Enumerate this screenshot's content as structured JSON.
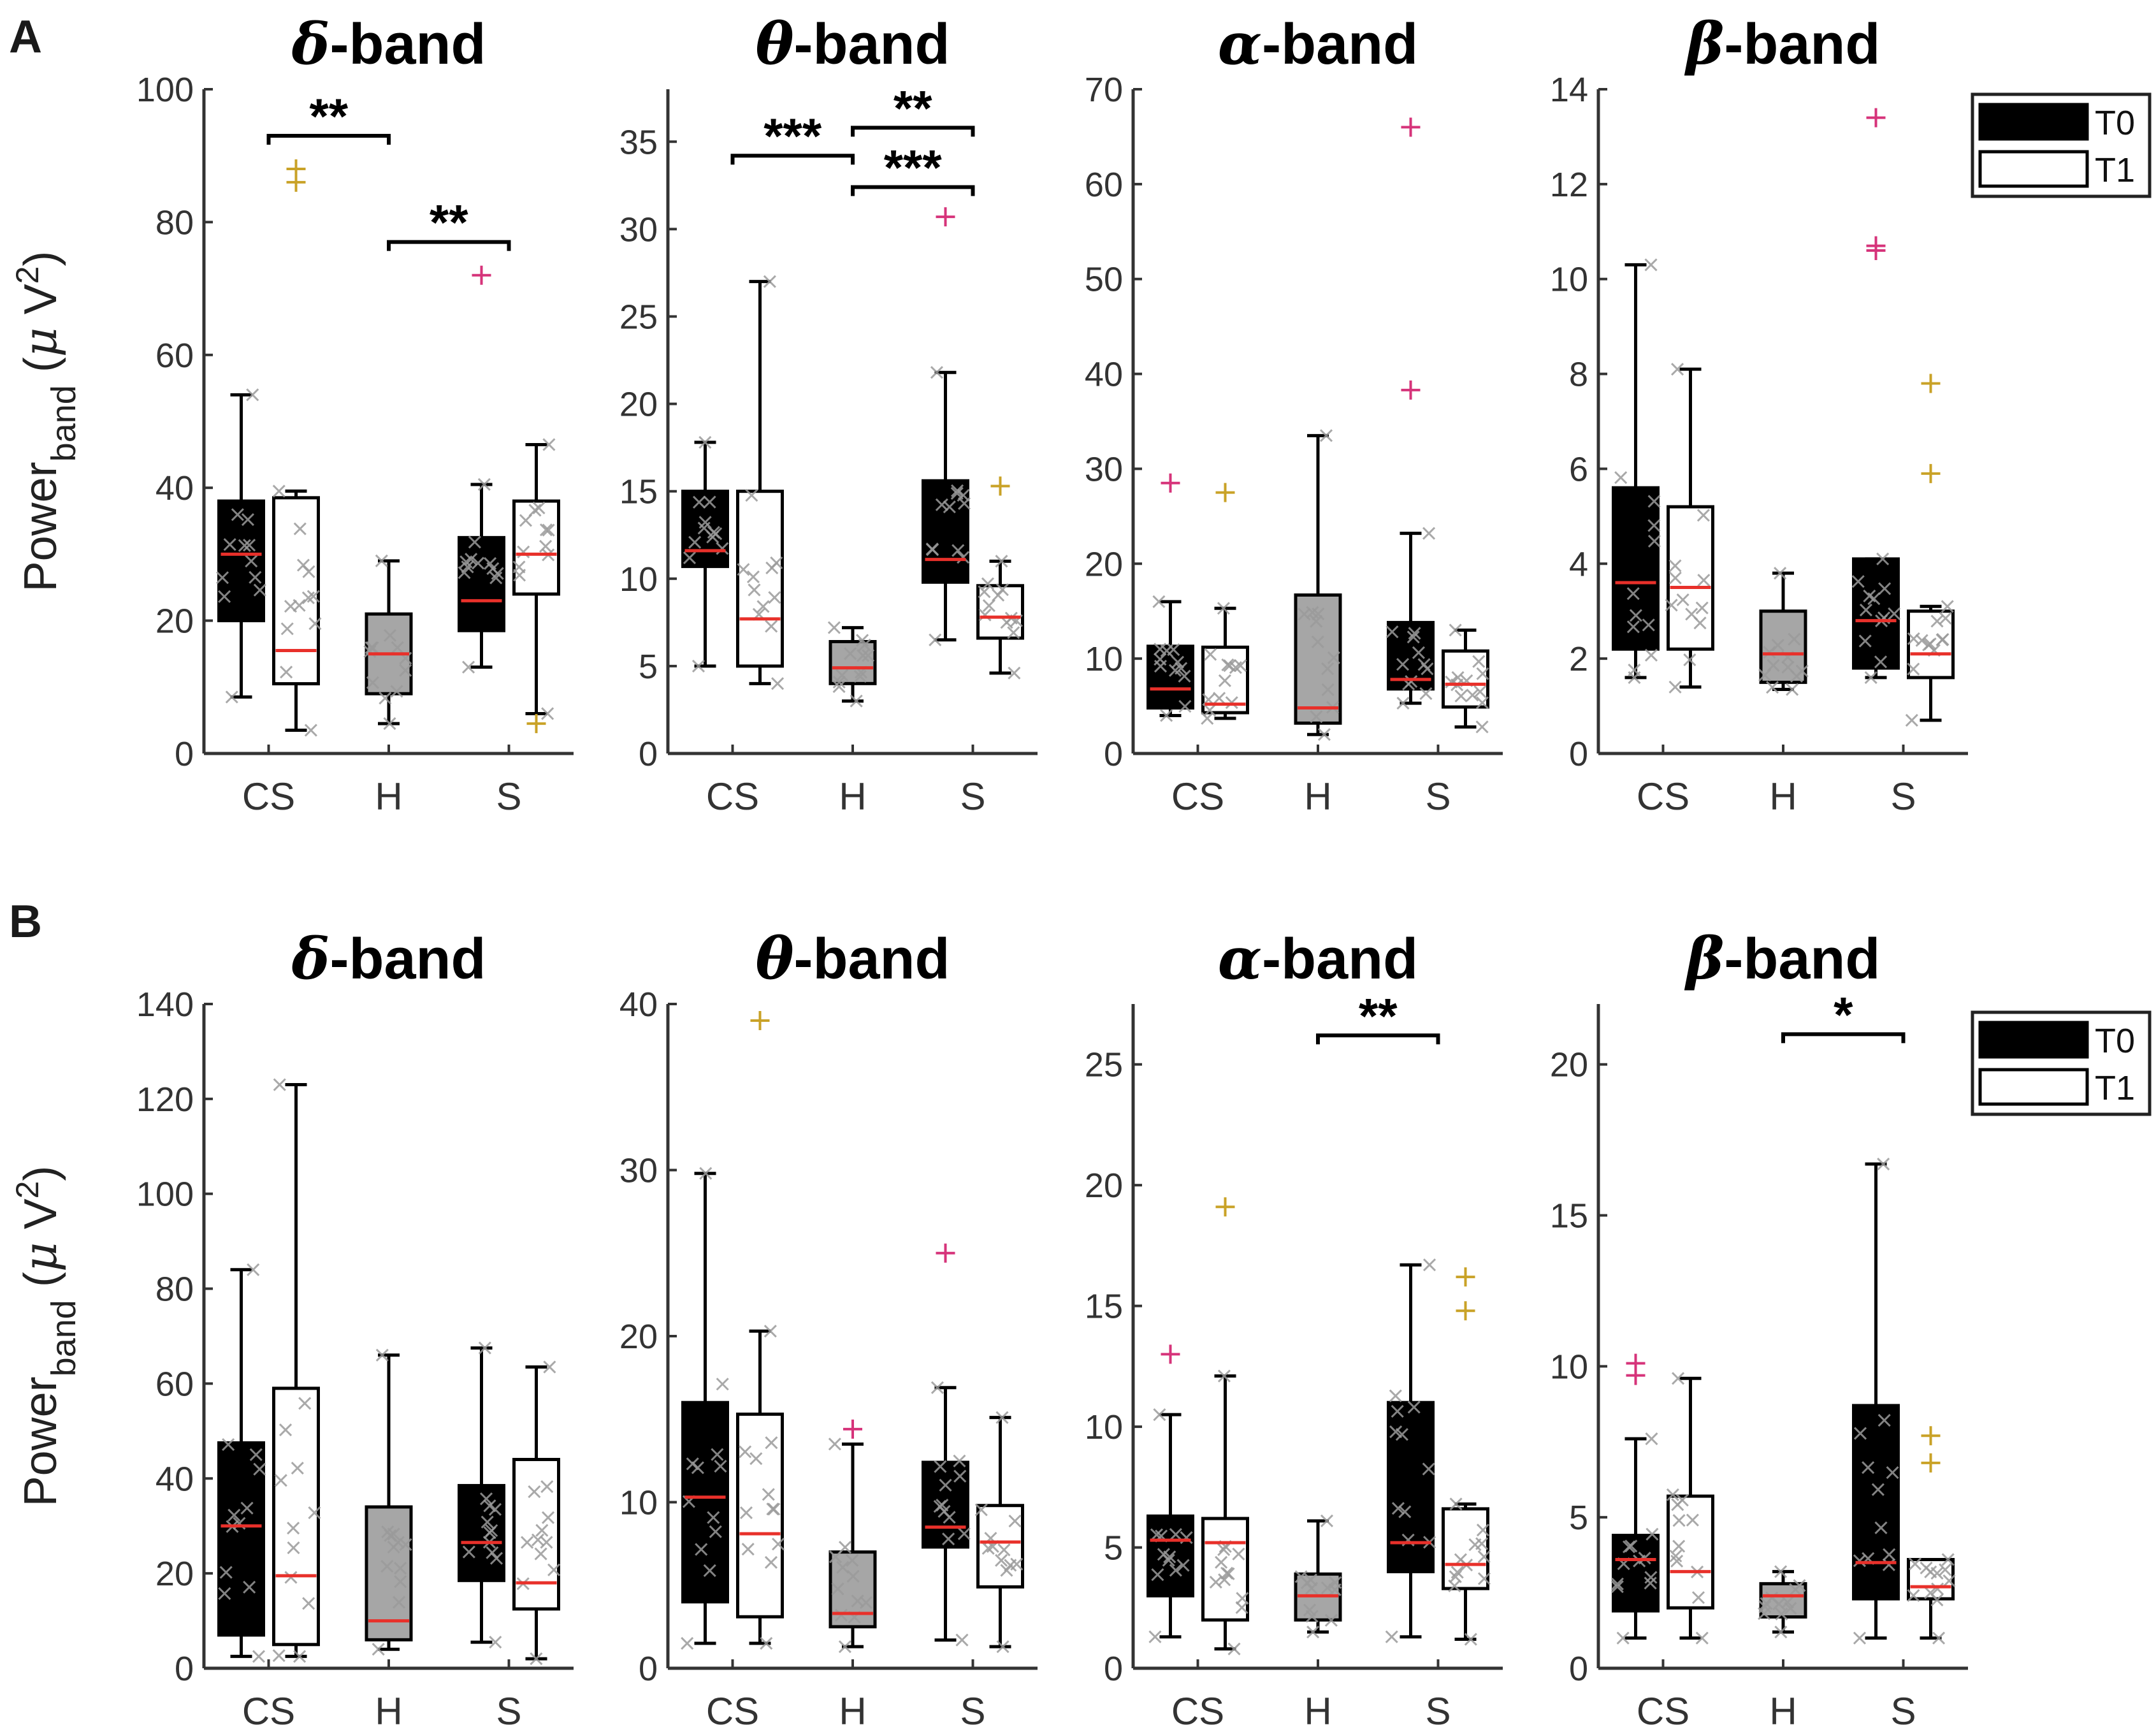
{
  "chart_data": {
    "type": "box",
    "y_label": {
      "main": "Power",
      "subscript": "band",
      "unit_open": " (",
      "unit_mu": "μ",
      "unit_v": " V",
      "unit_exp": "2",
      "unit_close": ")"
    },
    "legend": {
      "placement": "top-right",
      "entries": [
        {
          "name": "T0",
          "fill": "#000000"
        },
        {
          "name": "T1",
          "fill": "#ffffff"
        }
      ]
    },
    "colors": {
      "T0": "#000000",
      "T1": "#ffffff",
      "H": "#a6a6a6",
      "median": "#e8302a",
      "points": "#9a9a9a",
      "outlier_magenta": "#d6337a",
      "outlier_gold": "#c9a227"
    },
    "panels": [
      {
        "label": "A",
        "charts": [
          {
            "title_symbol": "δ",
            "title_suffix": "-band",
            "ylim": [
              0,
              100
            ],
            "yticks": [
              0,
              20,
              40,
              60,
              80,
              100
            ],
            "categories": [
              "CS",
              "H",
              "S"
            ],
            "boxes": [
              {
                "group": "CS",
                "series": "T0",
                "min": 8.5,
                "q1": 20,
                "median": 30,
                "q3": 38,
                "max": 54,
                "outliers": []
              },
              {
                "group": "CS",
                "series": "T1",
                "min": 3.5,
                "q1": 10.5,
                "median": 15.5,
                "q3": 38.5,
                "max": 39.5,
                "outliers": [
                  86,
                  88
                ]
              },
              {
                "group": "H",
                "series": "H",
                "min": 4.5,
                "q1": 9,
                "median": 15,
                "q3": 21,
                "max": 29,
                "outliers": []
              },
              {
                "group": "S",
                "series": "T0",
                "min": 13,
                "q1": 18.5,
                "median": 23,
                "q3": 32.5,
                "max": 40.5,
                "outliers": [
                  72
                ]
              },
              {
                "group": "S",
                "series": "T1",
                "min": 6,
                "q1": 24,
                "median": 30,
                "q3": 38,
                "max": 46.5,
                "outliers": [
                  4.5
                ]
              }
            ],
            "significance": [
              {
                "from": "CS",
                "to": "H",
                "y": 93,
                "label": "**"
              },
              {
                "from": "H",
                "to": "S",
                "y": 77,
                "label": "**"
              }
            ]
          },
          {
            "title_symbol": "θ",
            "title_suffix": "-band",
            "ylim": [
              0,
              38
            ],
            "yticks": [
              0,
              5,
              10,
              15,
              20,
              25,
              30,
              35
            ],
            "categories": [
              "CS",
              "H",
              "S"
            ],
            "boxes": [
              {
                "group": "CS",
                "series": "T0",
                "min": 5,
                "q1": 10.7,
                "median": 11.6,
                "q3": 15,
                "max": 17.8,
                "outliers": []
              },
              {
                "group": "CS",
                "series": "T1",
                "min": 4,
                "q1": 5,
                "median": 7.7,
                "q3": 15,
                "max": 27,
                "outliers": []
              },
              {
                "group": "H",
                "series": "H",
                "min": 3,
                "q1": 4,
                "median": 4.9,
                "q3": 6.4,
                "max": 7.2,
                "outliers": []
              },
              {
                "group": "S",
                "series": "T0",
                "min": 6.5,
                "q1": 9.8,
                "median": 11.1,
                "q3": 15.6,
                "max": 21.8,
                "outliers": [
                  30.7
                ]
              },
              {
                "group": "S",
                "series": "T1",
                "min": 4.6,
                "q1": 6.6,
                "median": 7.8,
                "q3": 9.6,
                "max": 11,
                "outliers": [
                  15.3
                ]
              }
            ],
            "significance": [
              {
                "from": "CS",
                "to": "H",
                "y": 34.2,
                "label": "***"
              },
              {
                "from": "H",
                "to": "S",
                "y": 35.8,
                "label": "**"
              },
              {
                "from": "H",
                "to": "S",
                "y": 32.4,
                "label": "***"
              }
            ]
          },
          {
            "title_symbol": "α",
            "title_suffix": "-band",
            "ylim": [
              0,
              70
            ],
            "yticks": [
              0,
              10,
              20,
              30,
              40,
              50,
              60,
              70
            ],
            "categories": [
              "CS",
              "H",
              "S"
            ],
            "boxes": [
              {
                "group": "CS",
                "series": "T0",
                "min": 4,
                "q1": 4.8,
                "median": 6.8,
                "q3": 11.3,
                "max": 16,
                "outliers": [
                  28.5
                ]
              },
              {
                "group": "CS",
                "series": "T1",
                "min": 3.7,
                "q1": 4.3,
                "median": 5.2,
                "q3": 11.2,
                "max": 15.3,
                "outliers": [
                  27.5
                ]
              },
              {
                "group": "H",
                "series": "H",
                "min": 2,
                "q1": 3.2,
                "median": 4.8,
                "q3": 16.7,
                "max": 33.5,
                "outliers": []
              },
              {
                "group": "S",
                "series": "T0",
                "min": 5.3,
                "q1": 6.8,
                "median": 7.8,
                "q3": 13.8,
                "max": 23.2,
                "outliers": [
                  38.3,
                  66
                ]
              },
              {
                "group": "S",
                "series": "T1",
                "min": 2.8,
                "q1": 4.9,
                "median": 7.3,
                "q3": 10.8,
                "max": 13,
                "outliers": []
              }
            ],
            "significance": []
          },
          {
            "title_symbol": "β",
            "title_suffix": "-band",
            "ylim": [
              0,
              14
            ],
            "yticks": [
              0,
              2,
              4,
              6,
              8,
              10,
              12,
              14
            ],
            "categories": [
              "CS",
              "H",
              "S"
            ],
            "boxes": [
              {
                "group": "CS",
                "series": "T0",
                "min": 1.6,
                "q1": 2.2,
                "median": 3.6,
                "q3": 5.6,
                "max": 10.3,
                "outliers": []
              },
              {
                "group": "CS",
                "series": "T1",
                "min": 1.4,
                "q1": 2.2,
                "median": 3.5,
                "q3": 5.2,
                "max": 8.1,
                "outliers": []
              },
              {
                "group": "H",
                "series": "H",
                "min": 1.35,
                "q1": 1.5,
                "median": 2.1,
                "q3": 3,
                "max": 3.8,
                "outliers": []
              },
              {
                "group": "S",
                "series": "T0",
                "min": 1.6,
                "q1": 1.8,
                "median": 2.8,
                "q3": 4.1,
                "max": 4.1,
                "outliers": [
                  10.6,
                  10.7,
                  13.4
                ]
              },
              {
                "group": "S",
                "series": "T1",
                "min": 0.7,
                "q1": 1.6,
                "median": 2.1,
                "q3": 3,
                "max": 3.1,
                "outliers": [
                  5.9,
                  7.8
                ]
              }
            ],
            "significance": []
          }
        ]
      },
      {
        "label": "B",
        "charts": [
          {
            "title_symbol": "δ",
            "title_suffix": "-band",
            "ylim": [
              0,
              140
            ],
            "yticks": [
              0,
              20,
              40,
              60,
              80,
              100,
              120,
              140
            ],
            "categories": [
              "CS",
              "H",
              "S"
            ],
            "boxes": [
              {
                "group": "CS",
                "series": "T0",
                "min": 2.5,
                "q1": 7,
                "median": 30,
                "q3": 47.5,
                "max": 84,
                "outliers": []
              },
              {
                "group": "CS",
                "series": "T1",
                "min": 2.5,
                "q1": 5,
                "median": 19.5,
                "q3": 59,
                "max": 123,
                "outliers": []
              },
              {
                "group": "H",
                "series": "H",
                "min": 4,
                "q1": 6,
                "median": 10,
                "q3": 34,
                "max": 66,
                "outliers": []
              },
              {
                "group": "S",
                "series": "T0",
                "min": 5.5,
                "q1": 18.5,
                "median": 26.5,
                "q3": 38.5,
                "max": 67.5,
                "outliers": []
              },
              {
                "group": "S",
                "series": "T1",
                "min": 2,
                "q1": 12.5,
                "median": 18,
                "q3": 44,
                "max": 63.5,
                "outliers": []
              }
            ],
            "significance": []
          },
          {
            "title_symbol": "θ",
            "title_suffix": "-band",
            "ylim": [
              0,
              40
            ],
            "yticks": [
              0,
              10,
              20,
              30,
              40
            ],
            "categories": [
              "CS",
              "H",
              "S"
            ],
            "boxes": [
              {
                "group": "CS",
                "series": "T0",
                "min": 1.5,
                "q1": 4,
                "median": 10.3,
                "q3": 16,
                "max": 29.8,
                "outliers": []
              },
              {
                "group": "CS",
                "series": "T1",
                "min": 1.5,
                "q1": 3.1,
                "median": 8.1,
                "q3": 15.3,
                "max": 20.3,
                "outliers": [
                  39
                ]
              },
              {
                "group": "H",
                "series": "H",
                "min": 1.3,
                "q1": 2.5,
                "median": 3.3,
                "q3": 7,
                "max": 13.5,
                "outliers": [
                  14.4
                ]
              },
              {
                "group": "S",
                "series": "T0",
                "min": 1.7,
                "q1": 7.3,
                "median": 8.5,
                "q3": 12.4,
                "max": 16.9,
                "outliers": [
                  25
                ]
              },
              {
                "group": "S",
                "series": "T1",
                "min": 1.3,
                "q1": 4.9,
                "median": 7.6,
                "q3": 9.8,
                "max": 15.1,
                "outliers": []
              }
            ],
            "significance": []
          },
          {
            "title_symbol": "α",
            "title_suffix": "-band",
            "ylim": [
              0,
              27.5
            ],
            "yticks": [
              0,
              5,
              10,
              15,
              20,
              25
            ],
            "categories": [
              "CS",
              "H",
              "S"
            ],
            "boxes": [
              {
                "group": "CS",
                "series": "T0",
                "min": 1.3,
                "q1": 3,
                "median": 5.3,
                "q3": 6.3,
                "max": 10.5,
                "outliers": [
                  13
                ]
              },
              {
                "group": "CS",
                "series": "T1",
                "min": 0.8,
                "q1": 2,
                "median": 5.2,
                "q3": 6.2,
                "max": 12.1,
                "outliers": [
                  19.1
                ]
              },
              {
                "group": "H",
                "series": "H",
                "min": 1.5,
                "q1": 2,
                "median": 3,
                "q3": 3.9,
                "max": 6.1,
                "outliers": []
              },
              {
                "group": "S",
                "series": "T0",
                "min": 1.3,
                "q1": 4,
                "median": 5.2,
                "q3": 11,
                "max": 16.7,
                "outliers": []
              },
              {
                "group": "S",
                "series": "T1",
                "min": 1.2,
                "q1": 3.3,
                "median": 4.3,
                "q3": 6.6,
                "max": 6.8,
                "outliers": [
                  14.8,
                  16.2
                ]
              }
            ],
            "significance": [
              {
                "from": "H",
                "to": "S",
                "y": 26.2,
                "label": "**"
              }
            ]
          },
          {
            "title_symbol": "β",
            "title_suffix": "-band",
            "ylim": [
              0,
              22
            ],
            "yticks": [
              0,
              5,
              10,
              15,
              20
            ],
            "categories": [
              "CS",
              "H",
              "S"
            ],
            "boxes": [
              {
                "group": "CS",
                "series": "T0",
                "min": 1,
                "q1": 1.9,
                "median": 3.6,
                "q3": 4.4,
                "max": 7.6,
                "outliers": [
                  9.7,
                  10.1
                ]
              },
              {
                "group": "CS",
                "series": "T1",
                "min": 1,
                "q1": 2,
                "median": 3.2,
                "q3": 5.7,
                "max": 9.6,
                "outliers": []
              },
              {
                "group": "H",
                "series": "H",
                "min": 1.2,
                "q1": 1.7,
                "median": 2.4,
                "q3": 2.8,
                "max": 3.2,
                "outliers": []
              },
              {
                "group": "S",
                "series": "T0",
                "min": 1,
                "q1": 2.3,
                "median": 3.5,
                "q3": 8.7,
                "max": 16.7,
                "outliers": []
              },
              {
                "group": "S",
                "series": "T1",
                "min": 1,
                "q1": 2.3,
                "median": 2.7,
                "q3": 3.6,
                "max": 3.6,
                "outliers": [
                  6.8,
                  7.7
                ]
              }
            ],
            "significance": [
              {
                "from": "H",
                "to": "S",
                "y": 21,
                "label": "*"
              }
            ]
          }
        ]
      }
    ]
  }
}
